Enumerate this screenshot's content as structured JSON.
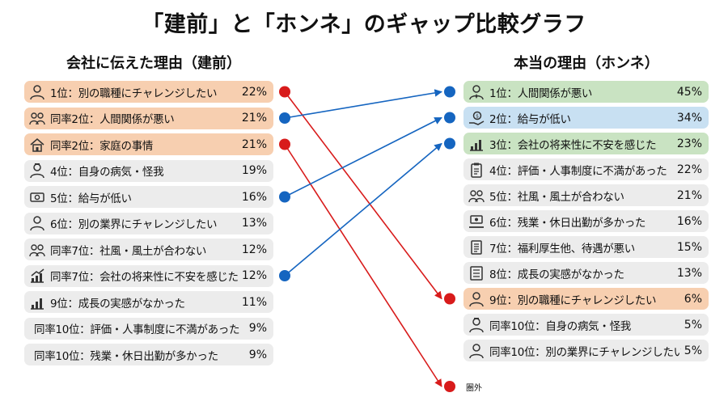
{
  "title": "「建前」と「ホンネ」のギャップ比較グラフ",
  "chart_data": {
    "type": "table",
    "left": {
      "title": "会社に伝えた理由（建前）",
      "items": [
        {
          "label": "1位：別の職種にチャレンジしたい",
          "value": "22%",
          "percent": 22,
          "color": "#f7cfb0",
          "icon": "person-icon"
        },
        {
          "label": "同率2位：人間関係が悪い",
          "value": "21%",
          "percent": 21,
          "color": "#f7cfb0",
          "icon": "group-icon"
        },
        {
          "label": "同率2位：家庭の事情",
          "value": "21%",
          "percent": 21,
          "color": "#f7cfb0",
          "icon": "house-icon"
        },
        {
          "label": "4位：自身の病気・怪我",
          "value": "19%",
          "percent": 19,
          "color": "#ececec",
          "icon": "sick-person-icon"
        },
        {
          "label": "5位：給与が低い",
          "value": "16%",
          "percent": 16,
          "color": "#ececec",
          "icon": "money-icon"
        },
        {
          "label": "6位：別の業界にチャレンジしたい",
          "value": "13%",
          "percent": 13,
          "color": "#ececec",
          "icon": "person-icon"
        },
        {
          "label": "同率7位：社風・風土が合わない",
          "value": "12%",
          "percent": 12,
          "color": "#ececec",
          "icon": "group-icon"
        },
        {
          "label": "同率7位：会社の将来性に不安を感じた",
          "value": "12%",
          "percent": 12,
          "color": "#ececec",
          "icon": "chart-up-icon"
        },
        {
          "label": "9位：成長の実感がなかった",
          "value": "11%",
          "percent": 11,
          "color": "#ececec",
          "icon": "bar-chart-icon"
        },
        {
          "label": "同率10位：評価・人事制度に不満があった",
          "value": "9%",
          "percent": 9,
          "color": "#ececec",
          "icon": ""
        },
        {
          "label": "同率10位：残業・休日出勤が多かった",
          "value": "9%",
          "percent": 9,
          "color": "#ececec",
          "icon": ""
        }
      ]
    },
    "right": {
      "title": "本当の理由（ホンネ）",
      "items": [
        {
          "label": "1位：人間関係が悪い",
          "value": "45%",
          "percent": 45,
          "color": "#c9e3c2",
          "icon": "person-tie-icon"
        },
        {
          "label": "2位：給与が低い",
          "value": "34%",
          "percent": 34,
          "color": "#c8e0f2",
          "icon": "money-hand-icon"
        },
        {
          "label": "3位：会社の将来性に不安を感じた",
          "value": "23%",
          "percent": 23,
          "color": "#c9e3c2",
          "icon": "bar-chart-icon"
        },
        {
          "label": "4位：評価・人事制度に不満があった",
          "value": "22%",
          "percent": 22,
          "color": "#ececec",
          "icon": "clipboard-icon"
        },
        {
          "label": "5位：社風・風土が合わない",
          "value": "21%",
          "percent": 21,
          "color": "#ececec",
          "icon": "group-icon"
        },
        {
          "label": "6位：残業・休日出勤が多かった",
          "value": "16%",
          "percent": 16,
          "color": "#ececec",
          "icon": "desk-worker-icon"
        },
        {
          "label": "7位：福利厚生他、待遇が悪い",
          "value": "15%",
          "percent": 15,
          "color": "#ececec",
          "icon": "document-icon"
        },
        {
          "label": "8位：成長の実感がなかった",
          "value": "13%",
          "percent": 13,
          "color": "#ececec",
          "icon": "list-icon"
        },
        {
          "label": "9位：別の職種にチャレンジしたい",
          "value": "6%",
          "percent": 6,
          "color": "#f7cfb0",
          "icon": "person-icon"
        },
        {
          "label": "同率10位：自身の病気・怪我",
          "value": "5%",
          "percent": 5,
          "color": "#ececec",
          "icon": "sick-person-icon"
        },
        {
          "label": "同率10位：別の業界にチャレンジしたい",
          "value": "5%",
          "percent": 5,
          "color": "#ececec",
          "icon": "person-icon"
        }
      ]
    },
    "connections": [
      {
        "from": 0,
        "to": 8,
        "color": "#d81b1b"
      },
      {
        "from": 1,
        "to": 0,
        "color": "#1565c0"
      },
      {
        "from": 2,
        "to": "out",
        "color": "#d81b1b"
      },
      {
        "from": 4,
        "to": 1,
        "color": "#1565c0"
      },
      {
        "from": 7,
        "to": 2,
        "color": "#1565c0"
      }
    ],
    "out_label": "圏外"
  }
}
